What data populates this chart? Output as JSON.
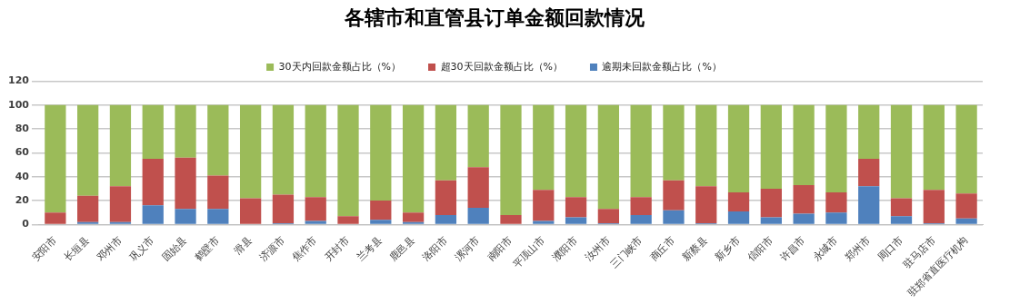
{
  "chart_data": {
    "type": "bar",
    "title": "各辖市和直管县订单金额回款情况",
    "stacked": true,
    "categories": [
      "安阳市",
      "长垣县",
      "邓州市",
      "巩义市",
      "固始县",
      "鹤壁市",
      "滑县",
      "济源市",
      "焦作市",
      "开封市",
      "兰考县",
      "鹿邑县",
      "洛阳市",
      "漯河市",
      "南阳市",
      "平顶山市",
      "濮阳市",
      "汝州市",
      "三门峡市",
      "商丘市",
      "新蔡县",
      "新乡市",
      "信阳市",
      "许昌市",
      "永城市",
      "郑州市",
      "周口市",
      "驻马店市",
      "驻郑省直医疗机构"
    ],
    "series": [
      {
        "name": "逾期未回款金额占比（%）",
        "color": "#4f81bd",
        "values": [
          0,
          2,
          2,
          16,
          13,
          13,
          0,
          1,
          3,
          0,
          4,
          2,
          8,
          14,
          0,
          3,
          6,
          1,
          8,
          12,
          1,
          11,
          6,
          9,
          10,
          32,
          7,
          1,
          5
        ]
      },
      {
        "name": "超30天回款金额占比（%）",
        "color": "#c0504d",
        "values": [
          10,
          22,
          30,
          39,
          43,
          28,
          22,
          24,
          20,
          7,
          16,
          8,
          29,
          34,
          8,
          26,
          17,
          12,
          15,
          25,
          31,
          16,
          24,
          24,
          17,
          23,
          15,
          28,
          21
        ]
      },
      {
        "name": "30天内回款金额占比（%）",
        "color": "#9bbb59",
        "values": [
          90,
          76,
          68,
          45,
          44,
          59,
          78,
          75,
          77,
          93,
          80,
          90,
          63,
          52,
          92,
          71,
          77,
          87,
          77,
          63,
          68,
          73,
          70,
          67,
          73,
          45,
          78,
          71,
          74
        ]
      }
    ],
    "ylim": [
      0,
      120
    ],
    "yticks": [
      0,
      20,
      40,
      60,
      80,
      100,
      120
    ],
    "grid": "y",
    "legend": "top"
  }
}
